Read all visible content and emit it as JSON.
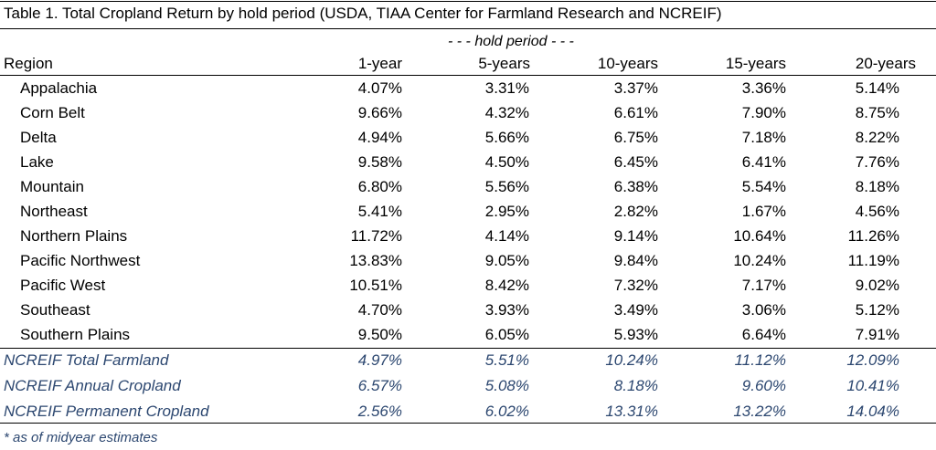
{
  "title": "Table 1.  Total Cropland Return by hold period (USDA, TIAA Center for Farmland Research and NCREIF)",
  "table": {
    "group_header": "- - - hold period - - -",
    "columns": [
      "Region",
      "1-year",
      "5-years",
      "10-years",
      "15-years",
      "20-years"
    ],
    "rows": [
      [
        "Appalachia",
        "4.07%",
        "3.31%",
        "3.37%",
        "3.36%",
        "5.14%"
      ],
      [
        "Corn Belt",
        "9.66%",
        "4.32%",
        "6.61%",
        "7.90%",
        "8.75%"
      ],
      [
        "Delta",
        "4.94%",
        "5.66%",
        "6.75%",
        "7.18%",
        "8.22%"
      ],
      [
        "Lake",
        "9.58%",
        "4.50%",
        "6.45%",
        "6.41%",
        "7.76%"
      ],
      [
        "Mountain",
        "6.80%",
        "5.56%",
        "6.38%",
        "5.54%",
        "8.18%"
      ],
      [
        "Northeast",
        "5.41%",
        "2.95%",
        "2.82%",
        "1.67%",
        "4.56%"
      ],
      [
        "Northern Plains",
        "11.72%",
        "4.14%",
        "9.14%",
        "10.64%",
        "11.26%"
      ],
      [
        "Pacific Northwest",
        "13.83%",
        "9.05%",
        "9.84%",
        "10.24%",
        "11.19%"
      ],
      [
        "Pacific West",
        "10.51%",
        "8.42%",
        "7.32%",
        "7.17%",
        "9.02%"
      ],
      [
        "Southeast",
        "4.70%",
        "3.93%",
        "3.49%",
        "3.06%",
        "5.12%"
      ],
      [
        "Southern Plains",
        "9.50%",
        "6.05%",
        "5.93%",
        "6.64%",
        "7.91%"
      ]
    ],
    "ncreif_rows": [
      [
        "NCREIF Total Farmland",
        "4.97%",
        "5.51%",
        "10.24%",
        "11.12%",
        "12.09%"
      ],
      [
        "NCREIF Annual Cropland",
        "6.57%",
        "5.08%",
        "8.18%",
        "9.60%",
        "10.41%"
      ],
      [
        "NCREIF Permanent Cropland",
        "2.56%",
        "6.02%",
        "13.31%",
        "13.22%",
        "14.04%"
      ]
    ]
  },
  "footnote": "* as of midyear estimates"
}
